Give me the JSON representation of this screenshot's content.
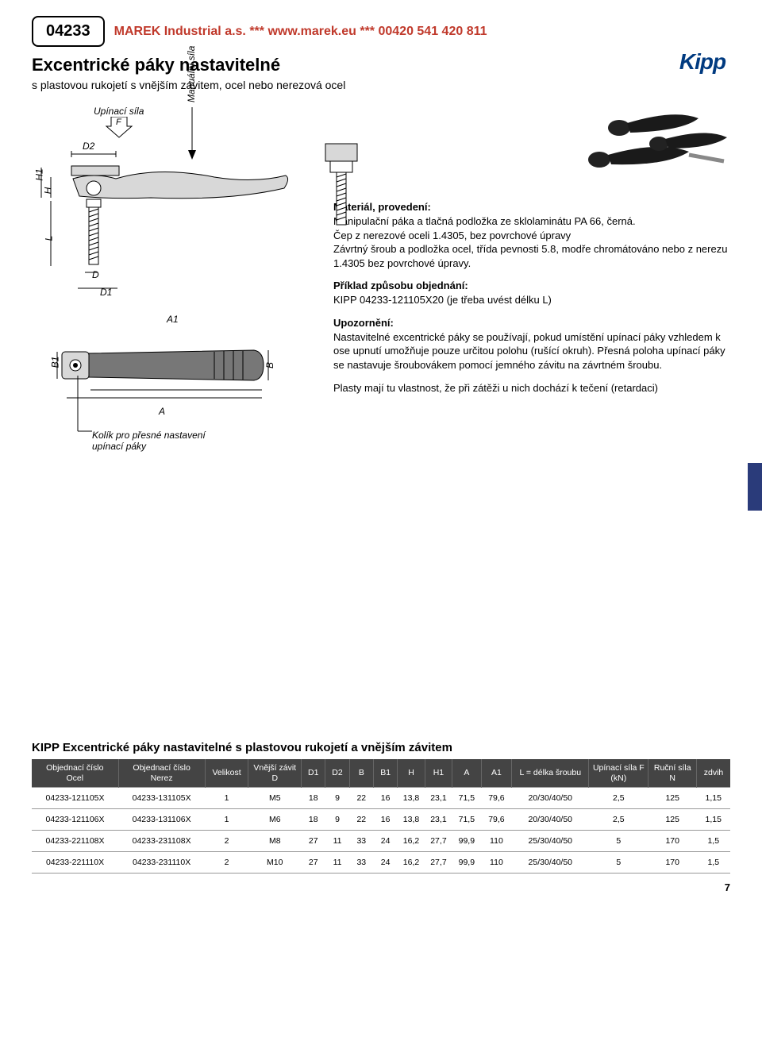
{
  "header": {
    "part_no": "04233",
    "banner": "MAREK Industrial a.s. *** www.marek.eu *** 00420 541 420 811",
    "title": "Excentrické páky nastavitelné",
    "subtitle": "s plastovou rukojetí s vnějším závitem, ocel nebo nerezová ocel",
    "logo": "Kipp"
  },
  "drawing": {
    "labels": {
      "upinaci_sila": "Upínací síla",
      "F": "F",
      "D2": "D2",
      "manualni_sila": "Manuální síla",
      "H1": "H1",
      "H": "H",
      "L": "L",
      "D": "D",
      "D1": "D1",
      "A1": "A1",
      "B1": "B1",
      "B": "B",
      "A": "A",
      "kolik": "Kolík pro přesné nastavení\nupínací páky"
    },
    "colors": {
      "line": "#000000",
      "fill_light": "#d8d8d8",
      "fill_dark": "#777777"
    }
  },
  "description": {
    "material_h": "Materiál, provedení:",
    "material_p": "Manipulační páka a tlačná podložka ze sklolaminátu PA 66, černá.\nČep z nerezové oceli 1.4305, bez povrchové úpravy\nZávrtný šroub a podložka ocel, třída pevnosti 5.8, modře chromátováno nebo z nerezu 1.4305 bez povrchové úpravy.",
    "example_h": "Příklad způsobu objednání:",
    "example_p": "KIPP 04233-121105X20 (je třeba uvést délku L)",
    "note_h": "Upozornění:",
    "note_p": "Nastavitelné excentrické páky se používají, pokud umístění upínací páky vzhledem k ose upnutí umožňuje pouze určitou polohu (rušící okruh). Přesná poloha upínací páky se nastavuje šroubovákem pomocí jemného závitu na závrtném šroubu.",
    "note_p2": "Plasty mají tu vlastnost, že při zátěži u nich dochází k tečení (retardaci)"
  },
  "table": {
    "title": "KIPP Excentrické páky nastavitelné s plastovou rukojetí a vnějším závitem",
    "headers": [
      "Objednací číslo\nOcel",
      "Objednací číslo\nNerez",
      "Velikost",
      "Vnější závit\nD",
      "D1",
      "D2",
      "B",
      "B1",
      "H",
      "H1",
      "A",
      "A1",
      "L = délka šroubu",
      "Upínací síla F\n(kN)",
      "Ruční síla\nN",
      "zdvih"
    ],
    "col_widths": [
      "90px",
      "90px",
      "42px",
      "55px",
      "25px",
      "25px",
      "25px",
      "25px",
      "28px",
      "28px",
      "30px",
      "32px",
      "80px",
      "62px",
      "50px",
      "35px"
    ],
    "rows": [
      [
        "04233-121105X",
        "04233-131105X",
        "1",
        "M5",
        "18",
        "9",
        "22",
        "16",
        "13,8",
        "23,1",
        "71,5",
        "79,6",
        "20/30/40/50",
        "2,5",
        "125",
        "1,15"
      ],
      [
        "04233-121106X",
        "04233-131106X",
        "1",
        "M6",
        "18",
        "9",
        "22",
        "16",
        "13,8",
        "23,1",
        "71,5",
        "79,6",
        "20/30/40/50",
        "2,5",
        "125",
        "1,15"
      ],
      [
        "04233-221108X",
        "04233-231108X",
        "2",
        "M8",
        "27",
        "11",
        "33",
        "24",
        "16,2",
        "27,7",
        "99,9",
        "110",
        "25/30/40/50",
        "5",
        "170",
        "1,5"
      ],
      [
        "04233-221110X",
        "04233-231110X",
        "2",
        "M10",
        "27",
        "11",
        "33",
        "24",
        "16,2",
        "27,7",
        "99,9",
        "110",
        "25/30/40/50",
        "5",
        "170",
        "1,5"
      ]
    ],
    "header_bg": "#444444",
    "header_fg": "#ffffff",
    "border_color": "#999999"
  },
  "page_number": "7",
  "side_tab_color": "#2a3b7a"
}
